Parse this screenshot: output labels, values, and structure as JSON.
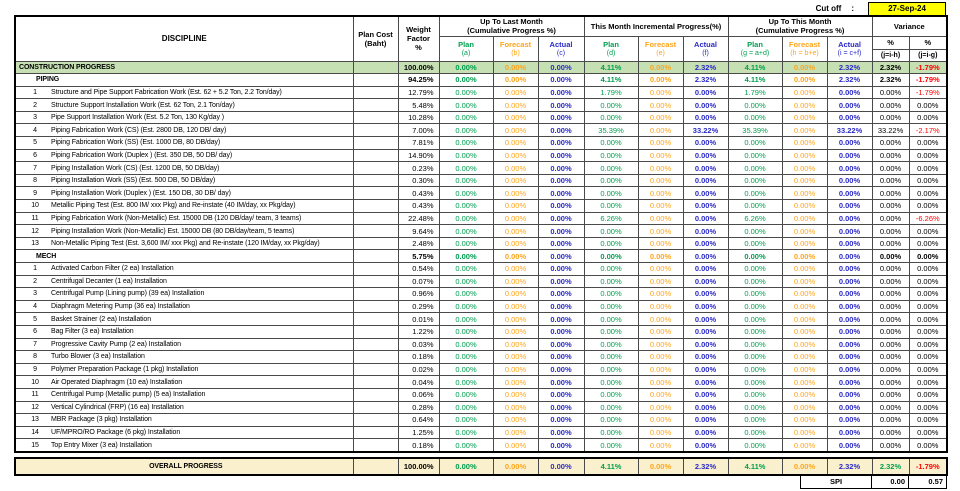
{
  "cutoff": {
    "label": "Cut off",
    "colon": ":",
    "date": "27-Sep-24"
  },
  "colors": {
    "plan": "#00A050",
    "forecast": "#FFA519",
    "actual": "#2A2AC8",
    "negative": "#FE0000",
    "summary_row_bg": "#C6E0B4",
    "overall_row_bg": "#FAF0CD",
    "cutoff_bg": "#FFFF00"
  },
  "header": {
    "discipline": "DISCIPLINE",
    "plan_cost_l1": "Plan Cost",
    "plan_cost_l2": "(Baht)",
    "weight_l1": "Weight",
    "weight_l2": "Factor",
    "weight_l3": "%",
    "groups": [
      {
        "l1": "Up To Last Month",
        "l2": "(Cumulative Progress %)"
      },
      {
        "l1": "This Month Incremental Progress(%)",
        "l2": ""
      },
      {
        "l1": "Up To This Month",
        "l2": "(Cumulative Progress %)"
      }
    ],
    "subcols": [
      {
        "l1": "Plan",
        "l2": "(a)"
      },
      {
        "l1": "Forecast",
        "l2": "(b)"
      },
      {
        "l1": "Actual",
        "l2": "(c)"
      },
      {
        "l1": "Plan",
        "l2": "(d)"
      },
      {
        "l1": "Forecast",
        "l2": "(e)"
      },
      {
        "l1": "Actual",
        "l2": "(f)"
      },
      {
        "l1": "Plan",
        "l2": "(g = a+d)"
      },
      {
        "l1": "Forecast",
        "l2": "(h = b+e)"
      },
      {
        "l1": "Actual",
        "l2": "(i = c+f)"
      }
    ],
    "variance": {
      "title": "Variance",
      "pct1": "%",
      "pct2": "%",
      "f1": "(j=i-h)",
      "f2": "(j=i-g)"
    }
  },
  "rows": [
    {
      "type": "total-green",
      "num": "",
      "label": "CONSTRUCTION PROGRESS",
      "weight": "100.00%",
      "values": [
        "0.00%",
        "0.00%",
        "0.00%",
        "4.11%",
        "0.00%",
        "2.32%",
        "4.11%",
        "0.00%",
        "2.32%"
      ],
      "var1": "2.32%",
      "var2": "-1.79%"
    },
    {
      "type": "group",
      "num": "",
      "label": "PIPING",
      "weight": "94.25%",
      "values": [
        "0.00%",
        "0.00%",
        "0.00%",
        "4.11%",
        "0.00%",
        "2.32%",
        "4.11%",
        "0.00%",
        "2.32%"
      ],
      "var1": "2.32%",
      "var2": "-1.79%"
    },
    {
      "type": "item",
      "num": "1",
      "label": "Structure and Pipe Support Fabrication Work (Est. 62 + 5.2 Ton, 2.2 Ton/day)",
      "weight": "12.79%",
      "values": [
        "0.00%",
        "0.00%",
        "0.00%",
        "1.79%",
        "0.00%",
        "0.00%",
        "1.79%",
        "0.00%",
        "0.00%"
      ],
      "var1": "0.00%",
      "var2": "-1.79%"
    },
    {
      "type": "item",
      "num": "2",
      "label": "Structure Support Installation Work (Est. 62 Ton, 2.1 Ton/day)",
      "weight": "5.48%",
      "values": [
        "0.00%",
        "0.00%",
        "0.00%",
        "0.00%",
        "0.00%",
        "0.00%",
        "0.00%",
        "0.00%",
        "0.00%"
      ],
      "var1": "0.00%",
      "var2": "0.00%"
    },
    {
      "type": "item",
      "num": "3",
      "label": "Pipe Support Installation Work (Est. 5.2 Ton, 130 Kg/day )",
      "weight": "10.28%",
      "values": [
        "0.00%",
        "0.00%",
        "0.00%",
        "0.00%",
        "0.00%",
        "0.00%",
        "0.00%",
        "0.00%",
        "0.00%"
      ],
      "var1": "0.00%",
      "var2": "0.00%"
    },
    {
      "type": "item",
      "num": "4",
      "label": "Piping Fabrication Work (CS) (Est. 2800 DB, 120 DB/ day)",
      "weight": "7.00%",
      "values": [
        "0.00%",
        "0.00%",
        "0.00%",
        "35.39%",
        "0.00%",
        "33.22%",
        "35.39%",
        "0.00%",
        "33.22%"
      ],
      "var1": "33.22%",
      "var2": "-2.17%"
    },
    {
      "type": "item",
      "num": "5",
      "label": "Piping Fabrication Work (SS) (Est. 1000 DB, 80 DB/day)",
      "weight": "7.81%",
      "values": [
        "0.00%",
        "0.00%",
        "0.00%",
        "0.00%",
        "0.00%",
        "0.00%",
        "0.00%",
        "0.00%",
        "0.00%"
      ],
      "var1": "0.00%",
      "var2": "0.00%"
    },
    {
      "type": "item",
      "num": "6",
      "label": "Piping Fabrication Work (Duplex ) (Est. 350 DB, 50 DB/ day)",
      "weight": "14.90%",
      "values": [
        "0.00%",
        "0.00%",
        "0.00%",
        "0.00%",
        "0.00%",
        "0.00%",
        "0.00%",
        "0.00%",
        "0.00%"
      ],
      "var1": "0.00%",
      "var2": "0.00%"
    },
    {
      "type": "item",
      "num": "7",
      "label": "Piping Installation Work (CS) (Est. 1200 DB, 50 DB/day)",
      "weight": "0.23%",
      "values": [
        "0.00%",
        "0.00%",
        "0.00%",
        "0.00%",
        "0.00%",
        "0.00%",
        "0.00%",
        "0.00%",
        "0.00%"
      ],
      "var1": "0.00%",
      "var2": "0.00%"
    },
    {
      "type": "item",
      "num": "8",
      "label": "Piping Installation Work (SS) (Est. 500 DB, 50 DB/day)",
      "weight": "0.30%",
      "values": [
        "0.00%",
        "0.00%",
        "0.00%",
        "0.00%",
        "0.00%",
        "0.00%",
        "0.00%",
        "0.00%",
        "0.00%"
      ],
      "var1": "0.00%",
      "var2": "0.00%"
    },
    {
      "type": "item",
      "num": "9",
      "label": "Piping Installation Work (Duplex ) (Est. 150 DB, 30 DB/ day)",
      "weight": "0.43%",
      "values": [
        "0.00%",
        "0.00%",
        "0.00%",
        "0.00%",
        "0.00%",
        "0.00%",
        "0.00%",
        "0.00%",
        "0.00%"
      ],
      "var1": "0.00%",
      "var2": "0.00%"
    },
    {
      "type": "item",
      "num": "10",
      "label": "Metallic Piping Test (Est. 800 IM/ xxx Pkg) and Re-instate (40 IM/day, xx Pkg/day)",
      "weight": "0.43%",
      "values": [
        "0.00%",
        "0.00%",
        "0.00%",
        "0.00%",
        "0.00%",
        "0.00%",
        "0.00%",
        "0.00%",
        "0.00%"
      ],
      "var1": "0.00%",
      "var2": "0.00%"
    },
    {
      "type": "item",
      "num": "11",
      "label": "Piping Fabrication Work (Non-Metallic) Est. 15000 DB (120 DB/day/ team, 3 teams)",
      "weight": "22.48%",
      "values": [
        "0.00%",
        "0.00%",
        "0.00%",
        "6.26%",
        "0.00%",
        "0.00%",
        "6.26%",
        "0.00%",
        "0.00%"
      ],
      "var1": "0.00%",
      "var2": "-6.26%"
    },
    {
      "type": "item",
      "num": "12",
      "label": "Piping Installation Work (Non-Metallic) Est. 15000 DB (80 DB/day/team, 5 teams)",
      "weight": "9.64%",
      "values": [
        "0.00%",
        "0.00%",
        "0.00%",
        "0.00%",
        "0.00%",
        "0.00%",
        "0.00%",
        "0.00%",
        "0.00%"
      ],
      "var1": "0.00%",
      "var2": "0.00%"
    },
    {
      "type": "item",
      "num": "13",
      "label": "Non-Metallic Piping Test (Est. 3,600 IM/ xxx Pkg) and Re-instate (120 IM/day, xx Pkg/day)",
      "weight": "2.48%",
      "values": [
        "0.00%",
        "0.00%",
        "0.00%",
        "0.00%",
        "0.00%",
        "0.00%",
        "0.00%",
        "0.00%",
        "0.00%"
      ],
      "var1": "0.00%",
      "var2": "0.00%"
    },
    {
      "type": "group",
      "num": "",
      "label": "MECH",
      "weight": "5.75%",
      "values": [
        "0.00%",
        "0.00%",
        "0.00%",
        "0.00%",
        "0.00%",
        "0.00%",
        "0.00%",
        "0.00%",
        "0.00%"
      ],
      "var1": "0.00%",
      "var2": "0.00%"
    },
    {
      "type": "item",
      "num": "1",
      "label": "Activated Carbon Filter (2 ea) Installation",
      "weight": "0.54%",
      "values": [
        "0.00%",
        "0.00%",
        "0.00%",
        "0.00%",
        "0.00%",
        "0.00%",
        "0.00%",
        "0.00%",
        "0.00%"
      ],
      "var1": "0.00%",
      "var2": "0.00%"
    },
    {
      "type": "item",
      "num": "2",
      "label": "Centrifugal Decanter (1 ea) Installation",
      "weight": "0.07%",
      "values": [
        "0.00%",
        "0.00%",
        "0.00%",
        "0.00%",
        "0.00%",
        "0.00%",
        "0.00%",
        "0.00%",
        "0.00%"
      ],
      "var1": "0.00%",
      "var2": "0.00%"
    },
    {
      "type": "item",
      "num": "3",
      "label": "Centrifugal Pump (Lining pump) (39 ea) Installation",
      "weight": "0.96%",
      "values": [
        "0.00%",
        "0.00%",
        "0.00%",
        "0.00%",
        "0.00%",
        "0.00%",
        "0.00%",
        "0.00%",
        "0.00%"
      ],
      "var1": "0.00%",
      "var2": "0.00%"
    },
    {
      "type": "item",
      "num": "4",
      "label": "Diaphragm Metering Pump (36 ea) Installation",
      "weight": "0.29%",
      "values": [
        "0.00%",
        "0.00%",
        "0.00%",
        "0.00%",
        "0.00%",
        "0.00%",
        "0.00%",
        "0.00%",
        "0.00%"
      ],
      "var1": "0.00%",
      "var2": "0.00%"
    },
    {
      "type": "item",
      "num": "5",
      "label": "Basket Strainer (2 ea) Installation",
      "weight": "0.01%",
      "values": [
        "0.00%",
        "0.00%",
        "0.00%",
        "0.00%",
        "0.00%",
        "0.00%",
        "0.00%",
        "0.00%",
        "0.00%"
      ],
      "var1": "0.00%",
      "var2": "0.00%"
    },
    {
      "type": "item",
      "num": "6",
      "label": "Bag Filter (3 ea) Installation",
      "weight": "1.22%",
      "values": [
        "0.00%",
        "0.00%",
        "0.00%",
        "0.00%",
        "0.00%",
        "0.00%",
        "0.00%",
        "0.00%",
        "0.00%"
      ],
      "var1": "0.00%",
      "var2": "0.00%"
    },
    {
      "type": "item",
      "num": "7",
      "label": "Progressive Cavity Pump (2 ea) Installation",
      "weight": "0.03%",
      "values": [
        "0.00%",
        "0.00%",
        "0.00%",
        "0.00%",
        "0.00%",
        "0.00%",
        "0.00%",
        "0.00%",
        "0.00%"
      ],
      "var1": "0.00%",
      "var2": "0.00%"
    },
    {
      "type": "item",
      "num": "8",
      "label": "Turbo Blower (3 ea) Installation",
      "weight": "0.18%",
      "values": [
        "0.00%",
        "0.00%",
        "0.00%",
        "0.00%",
        "0.00%",
        "0.00%",
        "0.00%",
        "0.00%",
        "0.00%"
      ],
      "var1": "0.00%",
      "var2": "0.00%"
    },
    {
      "type": "item",
      "num": "9",
      "label": "Polymer Preparation Package (1 pkg) Installation",
      "weight": "0.02%",
      "values": [
        "0.00%",
        "0.00%",
        "0.00%",
        "0.00%",
        "0.00%",
        "0.00%",
        "0.00%",
        "0.00%",
        "0.00%"
      ],
      "var1": "0.00%",
      "var2": "0.00%"
    },
    {
      "type": "item",
      "num": "10",
      "label": "Air Operated Diaphragm (10 ea) Installation",
      "weight": "0.04%",
      "values": [
        "0.00%",
        "0.00%",
        "0.00%",
        "0.00%",
        "0.00%",
        "0.00%",
        "0.00%",
        "0.00%",
        "0.00%"
      ],
      "var1": "0.00%",
      "var2": "0.00%"
    },
    {
      "type": "item",
      "num": "11",
      "label": "Centrifugal Pump (Metallic pump) (5 ea) Installation",
      "weight": "0.06%",
      "values": [
        "0.00%",
        "0.00%",
        "0.00%",
        "0.00%",
        "0.00%",
        "0.00%",
        "0.00%",
        "0.00%",
        "0.00%"
      ],
      "var1": "0.00%",
      "var2": "0.00%"
    },
    {
      "type": "item",
      "num": "12",
      "label": "Vertical Cylindrical (FRP) (16 ea) Installation",
      "weight": "0.28%",
      "values": [
        "0.00%",
        "0.00%",
        "0.00%",
        "0.00%",
        "0.00%",
        "0.00%",
        "0.00%",
        "0.00%",
        "0.00%"
      ],
      "var1": "0.00%",
      "var2": "0.00%"
    },
    {
      "type": "item",
      "num": "13",
      "label": "MBR Package (3 pkg) Installation",
      "weight": "0.64%",
      "values": [
        "0.00%",
        "0.00%",
        "0.00%",
        "0.00%",
        "0.00%",
        "0.00%",
        "0.00%",
        "0.00%",
        "0.00%"
      ],
      "var1": "0.00%",
      "var2": "0.00%"
    },
    {
      "type": "item",
      "num": "14",
      "label": "UF/MPRO/RO Package (6 pkg) Installation",
      "weight": "1.25%",
      "values": [
        "0.00%",
        "0.00%",
        "0.00%",
        "0.00%",
        "0.00%",
        "0.00%",
        "0.00%",
        "0.00%",
        "0.00%"
      ],
      "var1": "0.00%",
      "var2": "0.00%"
    },
    {
      "type": "item",
      "num": "15",
      "label": "Top Entry Mixer (3 ea) Installation",
      "weight": "0.18%",
      "values": [
        "0.00%",
        "0.00%",
        "0.00%",
        "0.00%",
        "0.00%",
        "0.00%",
        "0.00%",
        "0.00%",
        "0.00%"
      ],
      "var1": "0.00%",
      "var2": "0.00%"
    }
  ],
  "overall": {
    "type": "overall",
    "num": "",
    "label": "OVERALL PROGRESS",
    "weight": "100.00%",
    "values": [
      "0.00%",
      "0.00%",
      "0.00%",
      "4.11%",
      "0.00%",
      "2.32%",
      "4.11%",
      "0.00%",
      "2.32%"
    ],
    "var1": "2.32%",
    "var1_green": true,
    "var2": "-1.79%"
  },
  "spi": {
    "label": "SPI",
    "v1": "0.00",
    "v2": "0.57"
  }
}
